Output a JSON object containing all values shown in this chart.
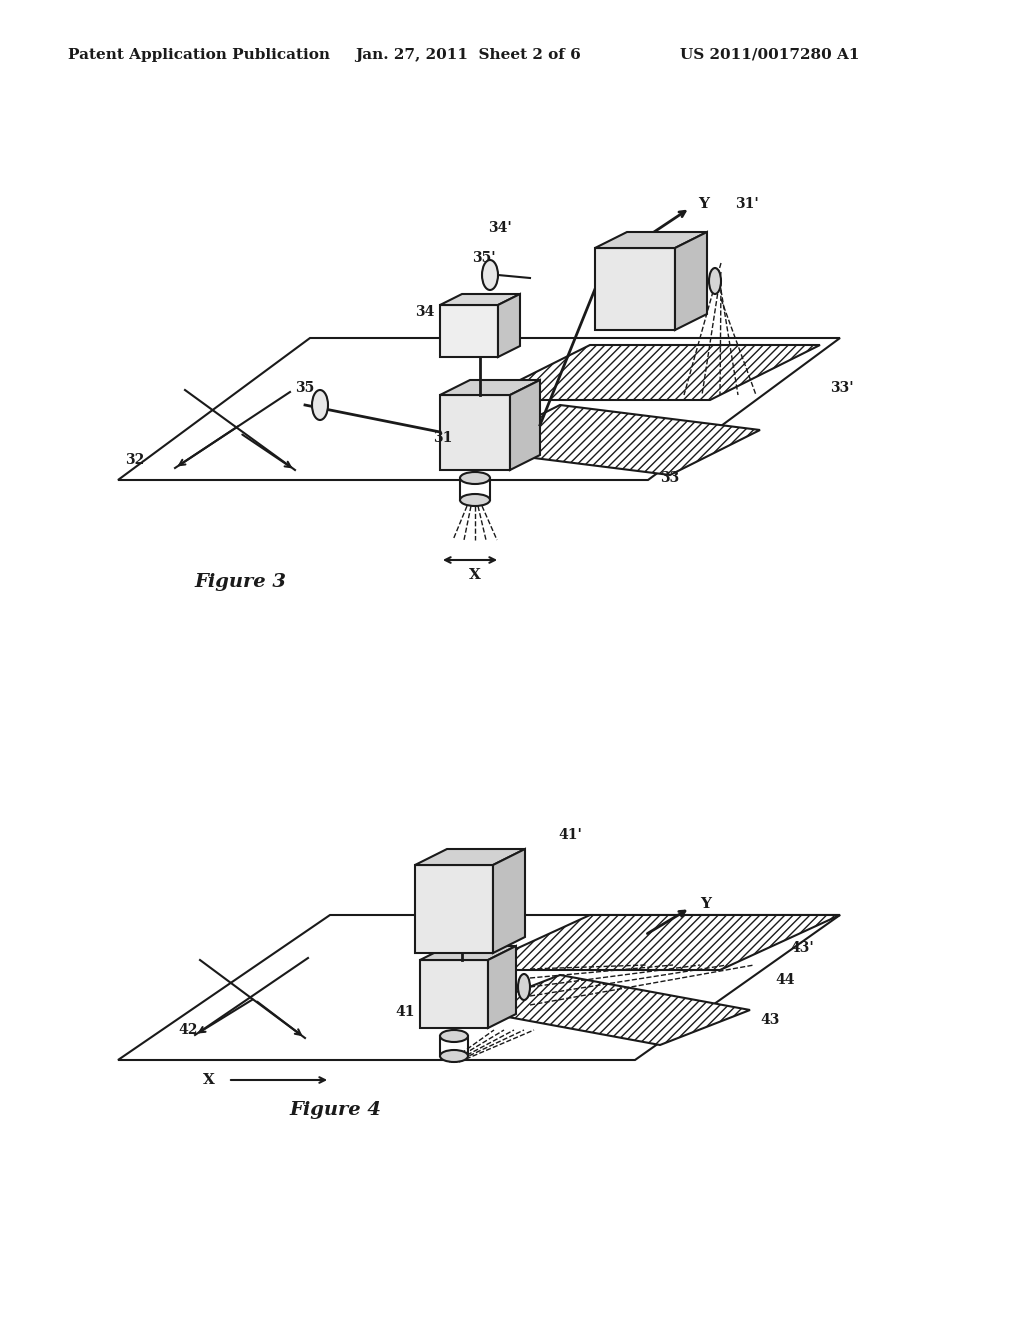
{
  "bg_color": "#ffffff",
  "header_text": "Patent Application Publication",
  "header_date": "Jan. 27, 2011  Sheet 2 of 6",
  "header_patent": "US 2011/0017280 A1",
  "fig3_label": "Figure 3",
  "fig4_label": "Figure 4",
  "line_color": "#1a1a1a",
  "font_size_header": 11,
  "font_size_labels": 10,
  "font_size_fig": 14,
  "lw": 1.5
}
